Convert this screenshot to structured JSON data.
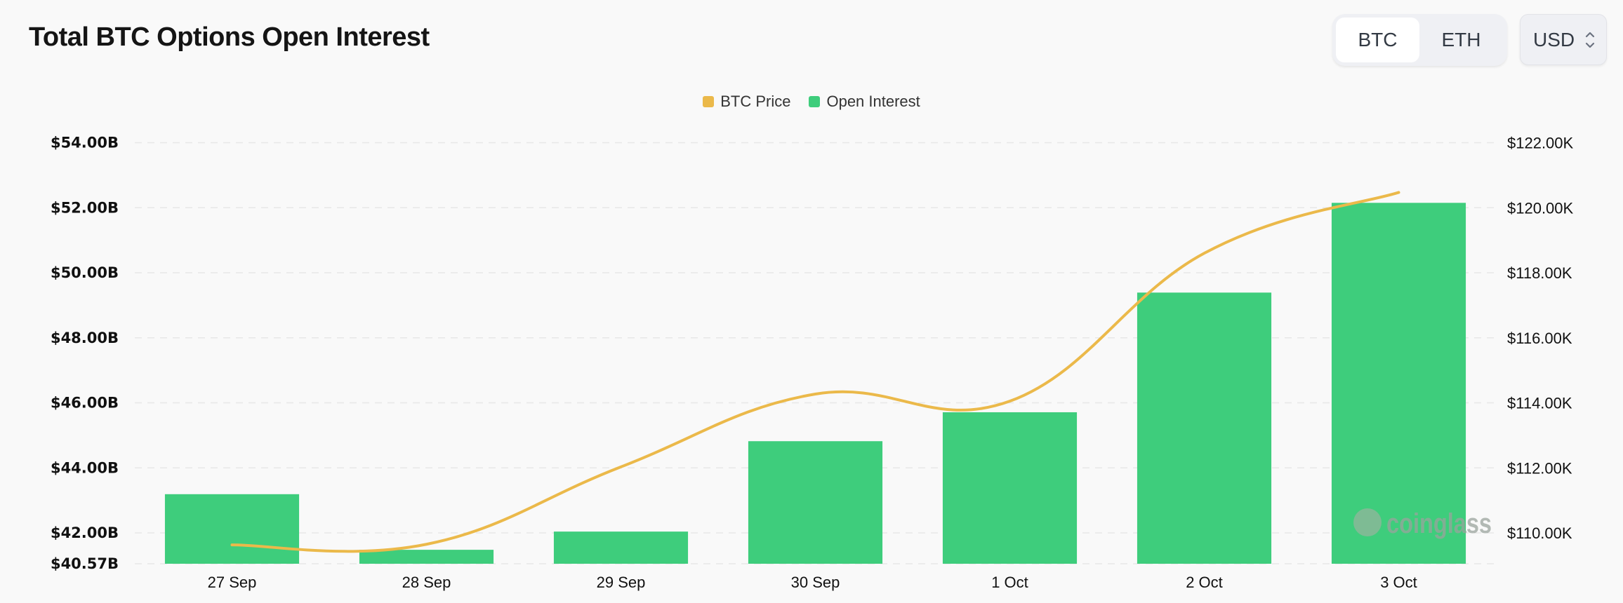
{
  "header": {
    "title": "Total BTC Options Open Interest"
  },
  "asset_toggle": {
    "options": [
      "BTC",
      "ETH"
    ],
    "selected": "BTC"
  },
  "currency_select": {
    "value": "USD"
  },
  "watermark": "coinglass",
  "chart_data": {
    "type": "bar",
    "title": "Total BTC Options Open Interest",
    "categories": [
      "27 Sep",
      "28 Sep",
      "29 Sep",
      "30 Sep",
      "1 Oct",
      "2 Oct",
      "3 Oct"
    ],
    "series": [
      {
        "name": "Open Interest",
        "type": "bar",
        "axis": "left",
        "color": "#3ecd7c",
        "values": [
          43.19,
          41.48,
          42.04,
          44.82,
          45.71,
          49.39,
          52.15
        ],
        "unit": "B USD"
      },
      {
        "name": "BTC Price",
        "type": "line",
        "axis": "right",
        "color": "#ebb94a",
        "values": [
          109.63,
          109.65,
          112.03,
          114.27,
          114.05,
          118.6,
          120.47
        ],
        "unit": "K USD"
      }
    ],
    "left_axis": {
      "ticks": [
        "$54.00B",
        "$52.00B",
        "$50.00B",
        "$48.00B",
        "$46.00B",
        "$44.00B",
        "$42.00B"
      ],
      "tick_values": [
        54,
        52,
        50,
        48,
        46,
        44,
        42
      ],
      "min_label": "$40.57B",
      "ylim": [
        40.57,
        54
      ]
    },
    "right_axis": {
      "ticks": [
        "$122.00K",
        "$120.00K",
        "$118.00K",
        "$116.00K",
        "$114.00K",
        "$112.00K",
        "$110.00K"
      ],
      "tick_values": [
        122,
        120,
        118,
        116,
        114,
        112,
        110
      ]
    },
    "legend": {
      "position": "top-center",
      "entries": [
        "BTC Price",
        "Open Interest"
      ]
    },
    "grid": true
  }
}
